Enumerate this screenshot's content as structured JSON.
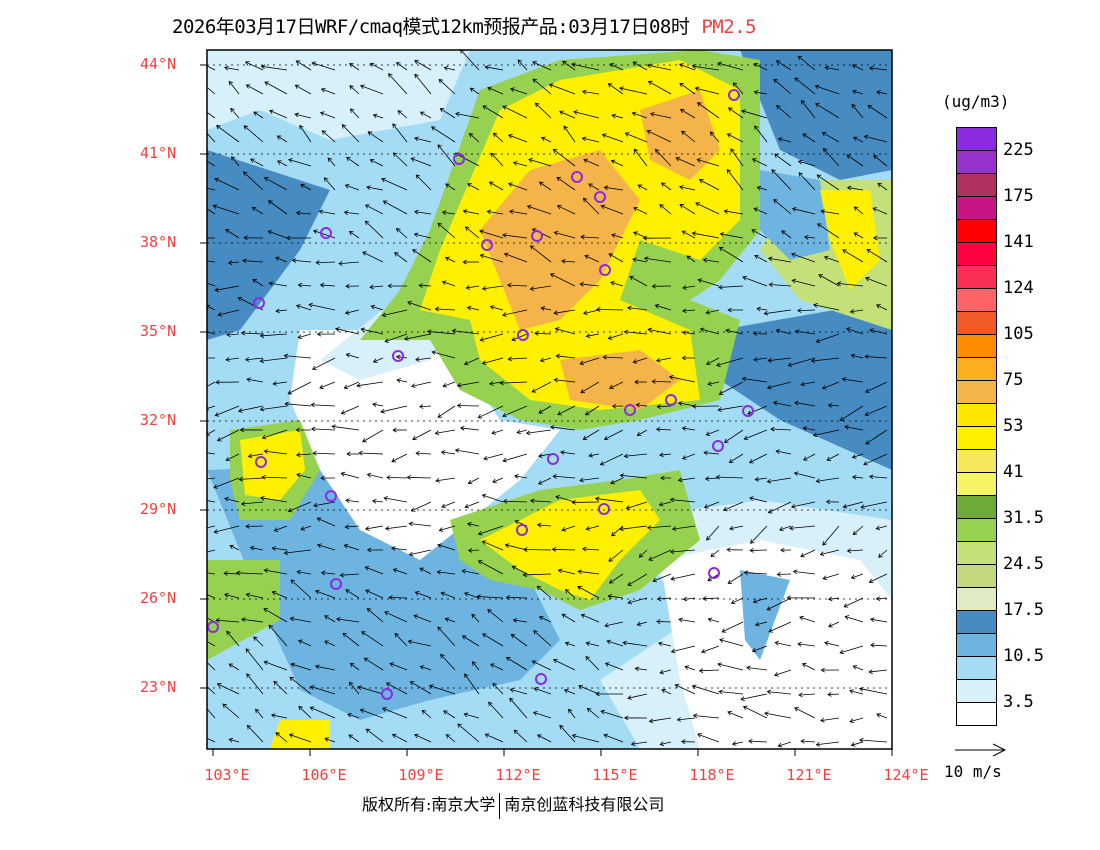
{
  "title": {
    "main": "2026年03月17日WRF/cmaq模式12km预报产品:03月17日08时",
    "pollutant": "PM2.5"
  },
  "lat_labels": [
    "44°N",
    "41°N",
    "38°N",
    "35°N",
    "32°N",
    "29°N",
    "26°N",
    "23°N"
  ],
  "lon_labels": [
    "103°E",
    "106°E",
    "109°E",
    "112°E",
    "115°E",
    "118°E",
    "121°E",
    "124°E"
  ],
  "colorbar": {
    "unit": "(ug/m3)",
    "colors": [
      "#8a2be2",
      "#9932cc",
      "#b03060",
      "#c71585",
      "#ff0000",
      "#ff0040",
      "#f83058",
      "#ff6464",
      "#f05a28",
      "#ff8c00",
      "#ffae20",
      "#f5b44a",
      "#ffe600",
      "#fff000",
      "#f5e65a",
      "#f5f564",
      "#6eaa37",
      "#96d250",
      "#c3e178",
      "#c3d77d",
      "#e1ebc3",
      "#468cc3",
      "#6eb4e1",
      "#a5dcf5",
      "#d7f0fa",
      "#ffffff"
    ],
    "labels": [
      "225",
      "175",
      "141",
      "124",
      "105",
      "75",
      "53",
      "41",
      "31.5",
      "24.5",
      "17.5",
      "10.5",
      "3.5"
    ]
  },
  "wind_reference": "10 m/s",
  "footer": {
    "left": "版权所有:南京大学",
    "right": "南京创蓝科技有限公司"
  }
}
